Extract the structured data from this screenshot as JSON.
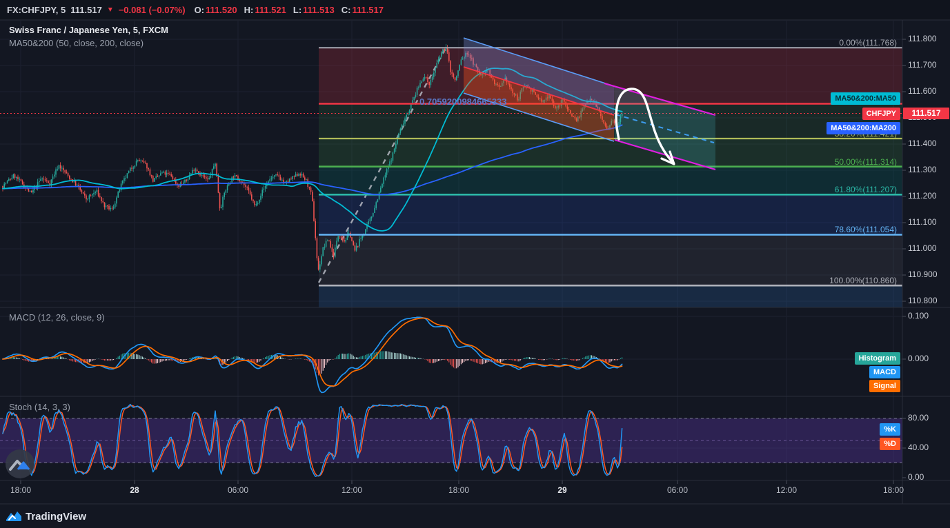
{
  "top_bar": {
    "symbol": "FX:CHFJPY, 5",
    "last_price": "111.517",
    "direction_glyph": "▼",
    "change": "−0.081 (−0.07%)",
    "ohlc": [
      {
        "label": "O:",
        "value": "111.520"
      },
      {
        "label": "H:",
        "value": "111.521"
      },
      {
        "label": "L:",
        "value": "111.513"
      },
      {
        "label": "C:",
        "value": "111.517"
      }
    ]
  },
  "main_panel": {
    "title": "Swiss Franc / Japanese Yen, 5, FXCM",
    "indicator_label": "MA50&200 (50, close, 200, close)",
    "trendline_value_label": "0.7059200984665333",
    "ma50_tag": "MA50&200:MA50",
    "ma200_tag": "MA50&200:MA200",
    "price_tag_symbol": "CHFJPY",
    "price_tag_value": "111.517",
    "price_ticks": [
      "111.800",
      "111.700",
      "111.600",
      "111.500",
      "111.400",
      "111.300",
      "111.200",
      "111.100",
      "111.000",
      "110.900",
      "110.800"
    ],
    "fib_levels": [
      {
        "label": "0.00%(111.768)",
        "pct": 0.0,
        "price": 111.768,
        "color": "#a6a9b2"
      },
      {
        "label": "",
        "pct": 23.6,
        "price": 111.554,
        "color": "#f23645"
      },
      {
        "label": "38.20%(111.421)",
        "pct": 38.2,
        "price": 111.421,
        "color": "#b0bb58"
      },
      {
        "label": "50.00%(111.314)",
        "pct": 50.0,
        "price": 111.314,
        "color": "#4caf50"
      },
      {
        "label": "61.80%(111.207)",
        "pct": 61.8,
        "price": 111.207,
        "color": "#2cb9a8"
      },
      {
        "label": "78.60%(111.054)",
        "pct": 78.6,
        "price": 111.054,
        "color": "#64b5f6"
      },
      {
        "label": "100.00%(110.860)",
        "pct": 100.0,
        "price": 110.86,
        "color": "#aeb1ba"
      }
    ]
  },
  "macd_panel": {
    "title": "MACD (12, 26, close, 9)",
    "tags": [
      {
        "label": "Histogram",
        "color": "#26a69a"
      },
      {
        "label": "MACD",
        "color": "#2196f3"
      },
      {
        "label": "Signal",
        "color": "#ff6d00"
      }
    ],
    "ticks": [
      "0.100",
      "0.000"
    ]
  },
  "stoch_panel": {
    "title": "Stoch (14, 3, 3)",
    "tags": [
      {
        "label": "%K",
        "color": "#2196f3"
      },
      {
        "label": "%D",
        "color": "#ff5722"
      }
    ],
    "ticks": [
      "80.00",
      "40.00",
      "0.00"
    ]
  },
  "time_axis": {
    "labels": [
      {
        "text": "18:00",
        "major": false
      },
      {
        "text": "28",
        "major": true
      },
      {
        "text": "06:00",
        "major": false
      },
      {
        "text": "12:00",
        "major": false
      },
      {
        "text": "18:00",
        "major": false
      },
      {
        "text": "29",
        "major": true
      },
      {
        "text": "06:00",
        "major": false
      },
      {
        "text": "12:00",
        "major": false
      },
      {
        "text": "18:00",
        "major": false
      }
    ]
  },
  "footer": {
    "brand": "TradingView"
  },
  "colors": {
    "background": "#131722",
    "grid": "#1c2130",
    "frame": "#2a2e39",
    "candle_up": "#26a69a",
    "candle_down": "#ef5350",
    "ma50": "#00bcd4",
    "ma200": "#2962ff",
    "price_line": "#f23645",
    "macd_line": "#2196f3",
    "signal_line": "#ff6d00",
    "hist_pos": "#26a69a",
    "hist_pos_light": "#b2dfdb",
    "hist_neg": "#ef5350",
    "hist_neg_light": "#ffcdd2",
    "stoch_k": "#2196f3",
    "stoch_d": "#ff5722",
    "stoch_band": "rgba(103,58,183,0.32)",
    "channel_blue": "#5b9cf6",
    "channel_red": "#f23645",
    "channel_magenta": "#e01ee0",
    "projection_dash": "#3d9df0",
    "drawn_arrow": "#ffffff",
    "trend_dash": "#b6b9c2"
  },
  "chart_data": {
    "type": "candlestick",
    "title": "Swiss Franc / Japanese Yen, 5, FXCM",
    "symbol": "CHFJPY",
    "exchange": "FXCM",
    "interval_minutes": 5,
    "last_bar": {
      "open": 111.52,
      "high": 111.521,
      "low": 111.513,
      "close": 111.517,
      "change": -0.081,
      "change_pct": -0.07
    },
    "price_axis_range": [
      110.776,
      111.871
    ],
    "price_line_value": 111.517,
    "fibonacci": {
      "high": 111.768,
      "low": 110.86,
      "levels_pct": [
        0,
        23.6,
        38.2,
        50,
        61.8,
        78.6,
        100
      ],
      "levels_price": [
        111.768,
        111.554,
        111.421,
        111.314,
        111.207,
        111.054,
        110.86
      ]
    },
    "time_tick_labels": [
      "18:00",
      "28",
      "06:00",
      "12:00",
      "18:00",
      "29",
      "06:00",
      "12:00",
      "18:00"
    ],
    "price_path_anchors": [
      [
        4,
        111.24
      ],
      [
        20,
        111.28
      ],
      [
        32,
        111.25
      ],
      [
        45,
        111.21
      ],
      [
        60,
        111.27
      ],
      [
        72,
        111.25
      ],
      [
        85,
        111.32
      ],
      [
        98,
        111.28
      ],
      [
        112,
        111.24
      ],
      [
        125,
        111.19
      ],
      [
        140,
        111.22
      ],
      [
        152,
        111.16
      ],
      [
        163,
        111.15
      ],
      [
        175,
        111.24
      ],
      [
        188,
        111.3
      ],
      [
        200,
        111.34
      ],
      [
        212,
        111.32
      ],
      [
        222,
        111.26
      ],
      [
        235,
        111.29
      ],
      [
        248,
        111.28
      ],
      [
        258,
        111.24
      ],
      [
        270,
        111.26
      ],
      [
        282,
        111.31
      ],
      [
        292,
        111.28
      ],
      [
        302,
        111.26
      ],
      [
        312,
        111.33
      ],
      [
        319,
        111.15
      ],
      [
        326,
        111.22
      ],
      [
        338,
        111.28
      ],
      [
        350,
        111.26
      ],
      [
        360,
        111.22
      ],
      [
        370,
        111.16
      ],
      [
        380,
        111.22
      ],
      [
        392,
        111.27
      ],
      [
        403,
        111.28
      ],
      [
        413,
        111.25
      ],
      [
        424,
        111.27
      ],
      [
        434,
        111.29
      ],
      [
        444,
        111.26
      ],
      [
        452,
        111.2
      ],
      [
        457,
        111.05
      ],
      [
        461,
        110.91
      ],
      [
        468,
        111.0
      ],
      [
        476,
        111.04
      ],
      [
        483,
        110.97
      ],
      [
        491,
        111.06
      ],
      [
        499,
        111.03
      ],
      [
        507,
        111.06
      ],
      [
        514,
        110.99
      ],
      [
        521,
        111.03
      ],
      [
        529,
        111.07
      ],
      [
        538,
        111.12
      ],
      [
        548,
        111.2
      ],
      [
        558,
        111.28
      ],
      [
        568,
        111.35
      ],
      [
        578,
        111.44
      ],
      [
        587,
        111.5
      ],
      [
        596,
        111.55
      ],
      [
        605,
        111.61
      ],
      [
        614,
        111.66
      ],
      [
        623,
        111.63
      ],
      [
        631,
        111.69
      ],
      [
        640,
        111.75
      ],
      [
        647,
        111.77
      ],
      [
        653,
        111.68
      ],
      [
        660,
        111.64
      ],
      [
        668,
        111.72
      ],
      [
        678,
        111.75
      ],
      [
        688,
        111.7
      ],
      [
        697,
        111.66
      ],
      [
        706,
        111.69
      ],
      [
        715,
        111.64
      ],
      [
        724,
        111.61
      ],
      [
        733,
        111.65
      ],
      [
        742,
        111.6
      ],
      [
        751,
        111.57
      ],
      [
        760,
        111.63
      ],
      [
        769,
        111.61
      ],
      [
        778,
        111.58
      ],
      [
        787,
        111.56
      ],
      [
        796,
        111.59
      ],
      [
        806,
        111.53
      ],
      [
        816,
        111.57
      ],
      [
        826,
        111.52
      ],
      [
        836,
        111.49
      ],
      [
        846,
        111.54
      ],
      [
        855,
        111.58
      ],
      [
        864,
        111.55
      ],
      [
        872,
        111.5
      ],
      [
        880,
        111.45
      ],
      [
        888,
        111.49
      ],
      [
        894,
        111.46
      ],
      [
        899,
        111.51
      ],
      [
        903,
        111.517
      ]
    ],
    "indicators": {
      "ma": {
        "name": "MA50&200",
        "params": [
          50,
          "close",
          200,
          "close"
        ]
      },
      "macd": {
        "params": [
          12,
          26,
          "close",
          9
        ],
        "visible_axis": [
          0.0,
          0.1
        ],
        "approx_peak": 0.098
      },
      "stoch": {
        "params": [
          14,
          3,
          3
        ],
        "bands": [
          20,
          80
        ],
        "visible_axis": [
          0,
          40,
          80
        ]
      }
    }
  }
}
